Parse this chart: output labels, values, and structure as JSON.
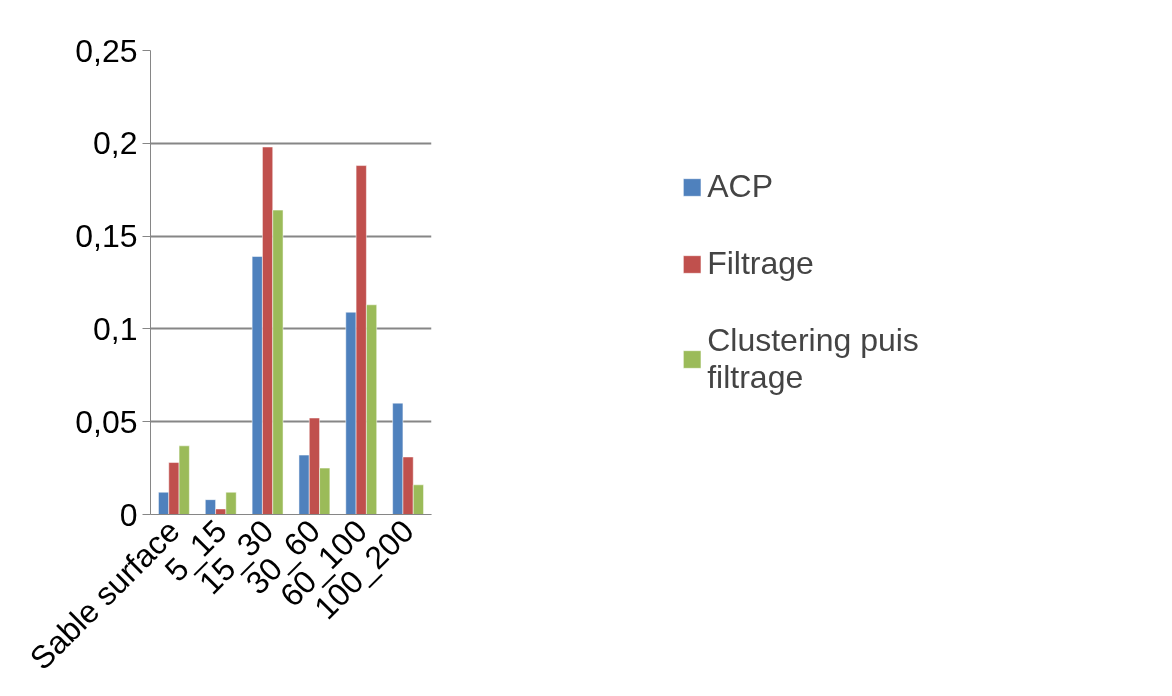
{
  "chart_data": {
    "type": "bar",
    "categories": [
      "Sable surface",
      "5_15",
      "15_30",
      "30_60",
      "60_100",
      "100_200"
    ],
    "series": [
      {
        "name": "ACP",
        "color": "#4f81bd",
        "values": [
          0.012,
          0.008,
          0.139,
          0.032,
          0.109,
          0.06
        ]
      },
      {
        "name": "Filtrage",
        "color": "#c0504d",
        "values": [
          0.028,
          0.003,
          0.198,
          0.052,
          0.188,
          0.031
        ]
      },
      {
        "name": "Clustering puis filtrage",
        "color": "#9bbb59",
        "values": [
          0.037,
          0.012,
          0.164,
          0.025,
          0.113,
          0.016
        ]
      }
    ],
    "ylim": [
      0,
      0.25
    ],
    "yticks": [
      {
        "value": 0,
        "label": "0"
      },
      {
        "value": 0.05,
        "label": "0,05"
      },
      {
        "value": 0.1,
        "label": "0,1"
      },
      {
        "value": 0.15,
        "label": "0,15"
      },
      {
        "value": 0.2,
        "label": "0,2"
      },
      {
        "value": 0.25,
        "label": "0,25"
      }
    ],
    "grid": "y",
    "legend": "right"
  }
}
